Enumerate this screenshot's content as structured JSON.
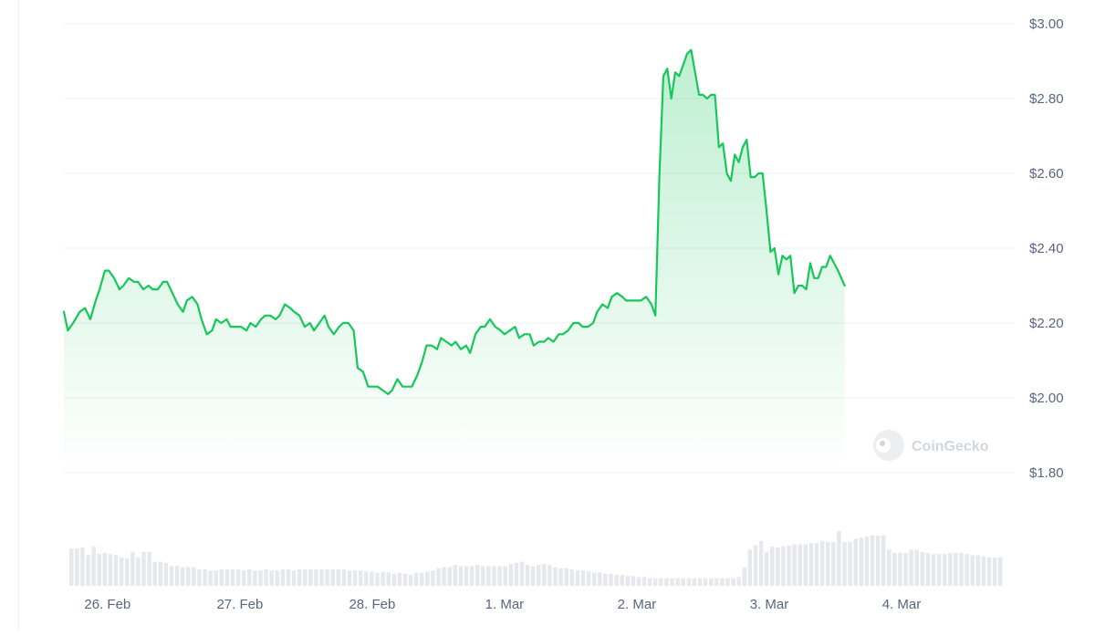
{
  "chart_data": {
    "type": "area",
    "title": "",
    "xlabel": "",
    "ylabel": "",
    "ylim": [
      1.8,
      3.0
    ],
    "y_ticks": [
      {
        "value": 3.0,
        "label": "$3.00"
      },
      {
        "value": 2.8,
        "label": "$2.80"
      },
      {
        "value": 2.6,
        "label": "$2.60"
      },
      {
        "value": 2.4,
        "label": "$2.40"
      },
      {
        "value": 2.2,
        "label": "$2.20"
      },
      {
        "value": 2.0,
        "label": "$2.00"
      },
      {
        "value": 1.8,
        "label": "$1.80"
      }
    ],
    "x_ticks": [
      {
        "day": 0.68,
        "label": "26. Feb"
      },
      {
        "day": 1.68,
        "label": "27. Feb"
      },
      {
        "day": 2.68,
        "label": "28. Feb"
      },
      {
        "day": 3.68,
        "label": "1. Mar"
      },
      {
        "day": 4.68,
        "label": "2. Mar"
      },
      {
        "day": 5.68,
        "label": "3. Mar"
      },
      {
        "day": 6.68,
        "label": "4. Mar"
      }
    ],
    "x_range_days": [
      0.35,
      7.48
    ],
    "grid": true,
    "line_color": "#16c75a",
    "fill_color": "#16c75a",
    "series": [
      {
        "points": [
          [
            0.35,
            2.23
          ],
          [
            0.38,
            2.18
          ],
          [
            0.42,
            2.2
          ],
          [
            0.47,
            2.23
          ],
          [
            0.51,
            2.24
          ],
          [
            0.55,
            2.21
          ],
          [
            0.59,
            2.26
          ],
          [
            0.62,
            2.29
          ],
          [
            0.66,
            2.34
          ],
          [
            0.69,
            2.34
          ],
          [
            0.73,
            2.32
          ],
          [
            0.77,
            2.29
          ],
          [
            0.8,
            2.3
          ],
          [
            0.84,
            2.32
          ],
          [
            0.88,
            2.31
          ],
          [
            0.91,
            2.31
          ],
          [
            0.95,
            2.29
          ],
          [
            0.99,
            2.3
          ],
          [
            1.02,
            2.29
          ],
          [
            1.06,
            2.29
          ],
          [
            1.1,
            2.31
          ],
          [
            1.13,
            2.31
          ],
          [
            1.17,
            2.28
          ],
          [
            1.21,
            2.25
          ],
          [
            1.25,
            2.23
          ],
          [
            1.28,
            2.26
          ],
          [
            1.32,
            2.27
          ],
          [
            1.36,
            2.25
          ],
          [
            1.39,
            2.21
          ],
          [
            1.43,
            2.17
          ],
          [
            1.47,
            2.18
          ],
          [
            1.5,
            2.21
          ],
          [
            1.54,
            2.2
          ],
          [
            1.58,
            2.21
          ],
          [
            1.61,
            2.19
          ],
          [
            1.65,
            2.19
          ],
          [
            1.69,
            2.19
          ],
          [
            1.73,
            2.18
          ],
          [
            1.76,
            2.2
          ],
          [
            1.8,
            2.19
          ],
          [
            1.84,
            2.21
          ],
          [
            1.87,
            2.22
          ],
          [
            1.91,
            2.22
          ],
          [
            1.95,
            2.21
          ],
          [
            1.98,
            2.22
          ],
          [
            2.02,
            2.25
          ],
          [
            2.06,
            2.24
          ],
          [
            2.09,
            2.23
          ],
          [
            2.13,
            2.22
          ],
          [
            2.17,
            2.19
          ],
          [
            2.21,
            2.2
          ],
          [
            2.24,
            2.18
          ],
          [
            2.28,
            2.2
          ],
          [
            2.32,
            2.22
          ],
          [
            2.35,
            2.19
          ],
          [
            2.39,
            2.17
          ],
          [
            2.43,
            2.19
          ],
          [
            2.46,
            2.2
          ],
          [
            2.5,
            2.2
          ],
          [
            2.54,
            2.18
          ],
          [
            2.57,
            2.08
          ],
          [
            2.61,
            2.07
          ],
          [
            2.65,
            2.03
          ],
          [
            2.69,
            2.03
          ],
          [
            2.72,
            2.03
          ],
          [
            2.76,
            2.02
          ],
          [
            2.8,
            2.01
          ],
          [
            2.83,
            2.02
          ],
          [
            2.87,
            2.05
          ],
          [
            2.91,
            2.03
          ],
          [
            2.95,
            2.03
          ],
          [
            2.98,
            2.03
          ],
          [
            3.02,
            2.06
          ],
          [
            3.06,
            2.1
          ],
          [
            3.09,
            2.14
          ],
          [
            3.13,
            2.14
          ],
          [
            3.17,
            2.13
          ],
          [
            3.2,
            2.16
          ],
          [
            3.24,
            2.15
          ],
          [
            3.28,
            2.14
          ],
          [
            3.31,
            2.15
          ],
          [
            3.35,
            2.13
          ],
          [
            3.39,
            2.14
          ],
          [
            3.42,
            2.12
          ],
          [
            3.46,
            2.17
          ],
          [
            3.5,
            2.19
          ],
          [
            3.53,
            2.19
          ],
          [
            3.57,
            2.21
          ],
          [
            3.61,
            2.19
          ],
          [
            3.65,
            2.18
          ],
          [
            3.68,
            2.17
          ],
          [
            3.72,
            2.18
          ],
          [
            3.76,
            2.19
          ],
          [
            3.79,
            2.16
          ],
          [
            3.83,
            2.17
          ],
          [
            3.87,
            2.17
          ],
          [
            3.9,
            2.14
          ],
          [
            3.94,
            2.15
          ],
          [
            3.98,
            2.15
          ],
          [
            4.01,
            2.16
          ],
          [
            4.05,
            2.15
          ],
          [
            4.09,
            2.17
          ],
          [
            4.12,
            2.17
          ],
          [
            4.16,
            2.18
          ],
          [
            4.2,
            2.2
          ],
          [
            4.24,
            2.2
          ],
          [
            4.27,
            2.19
          ],
          [
            4.31,
            2.19
          ],
          [
            4.35,
            2.2
          ],
          [
            4.38,
            2.23
          ],
          [
            4.42,
            2.25
          ],
          [
            4.46,
            2.24
          ],
          [
            4.49,
            2.27
          ],
          [
            4.53,
            2.28
          ],
          [
            4.57,
            2.27
          ],
          [
            4.6,
            2.26
          ],
          [
            4.64,
            2.26
          ],
          [
            4.68,
            2.26
          ],
          [
            4.71,
            2.26
          ],
          [
            4.75,
            2.27
          ],
          [
            4.79,
            2.25
          ],
          [
            4.82,
            2.22
          ],
          [
            4.85,
            2.59
          ],
          [
            4.88,
            2.86
          ],
          [
            4.91,
            2.88
          ],
          [
            4.94,
            2.8
          ],
          [
            4.97,
            2.87
          ],
          [
            5.0,
            2.86
          ],
          [
            5.03,
            2.89
          ],
          [
            5.06,
            2.92
          ],
          [
            5.09,
            2.93
          ],
          [
            5.12,
            2.87
          ],
          [
            5.15,
            2.81
          ],
          [
            5.18,
            2.81
          ],
          [
            5.21,
            2.8
          ],
          [
            5.24,
            2.81
          ],
          [
            5.27,
            2.81
          ],
          [
            5.3,
            2.67
          ],
          [
            5.33,
            2.68
          ],
          [
            5.36,
            2.6
          ],
          [
            5.39,
            2.58
          ],
          [
            5.42,
            2.65
          ],
          [
            5.45,
            2.63
          ],
          [
            5.48,
            2.67
          ],
          [
            5.51,
            2.69
          ],
          [
            5.54,
            2.59
          ],
          [
            5.57,
            2.59
          ],
          [
            5.6,
            2.6
          ],
          [
            5.63,
            2.6
          ],
          [
            5.66,
            2.5
          ],
          [
            5.69,
            2.39
          ],
          [
            5.72,
            2.4
          ],
          [
            5.75,
            2.33
          ],
          [
            5.78,
            2.38
          ],
          [
            5.81,
            2.37
          ],
          [
            5.84,
            2.38
          ],
          [
            5.87,
            2.28
          ],
          [
            5.9,
            2.3
          ],
          [
            5.93,
            2.3
          ],
          [
            5.96,
            2.29
          ],
          [
            5.99,
            2.36
          ],
          [
            6.02,
            2.32
          ],
          [
            6.05,
            2.32
          ],
          [
            6.08,
            2.35
          ],
          [
            6.11,
            2.35
          ],
          [
            6.14,
            2.38
          ],
          [
            6.17,
            2.36
          ],
          [
            6.2,
            2.34
          ],
          [
            6.25,
            2.3
          ]
        ]
      }
    ],
    "volume": {
      "bar_color": "#e6e8ec",
      "values": [
        0.34,
        0.34,
        0.35,
        0.28,
        0.36,
        0.29,
        0.3,
        0.29,
        0.28,
        0.26,
        0.25,
        0.31,
        0.26,
        0.31,
        0.31,
        0.22,
        0.22,
        0.21,
        0.18,
        0.18,
        0.17,
        0.17,
        0.17,
        0.15,
        0.15,
        0.14,
        0.14,
        0.15,
        0.15,
        0.15,
        0.15,
        0.14,
        0.15,
        0.14,
        0.14,
        0.15,
        0.14,
        0.14,
        0.15,
        0.15,
        0.14,
        0.15,
        0.15,
        0.15,
        0.15,
        0.15,
        0.15,
        0.15,
        0.15,
        0.15,
        0.14,
        0.14,
        0.14,
        0.13,
        0.13,
        0.12,
        0.13,
        0.12,
        0.11,
        0.12,
        0.11,
        0.1,
        0.12,
        0.12,
        0.13,
        0.14,
        0.16,
        0.17,
        0.17,
        0.19,
        0.18,
        0.18,
        0.18,
        0.19,
        0.18,
        0.18,
        0.18,
        0.18,
        0.18,
        0.2,
        0.21,
        0.22,
        0.19,
        0.18,
        0.19,
        0.2,
        0.19,
        0.17,
        0.16,
        0.16,
        0.15,
        0.14,
        0.14,
        0.13,
        0.12,
        0.12,
        0.11,
        0.11,
        0.1,
        0.1,
        0.09,
        0.09,
        0.08,
        0.08,
        0.07,
        0.07,
        0.07,
        0.07,
        0.07,
        0.07,
        0.07,
        0.07,
        0.07,
        0.07,
        0.07,
        0.07,
        0.07,
        0.07,
        0.07,
        0.07,
        0.08,
        0.17,
        0.33,
        0.37,
        0.41,
        0.31,
        0.36,
        0.35,
        0.36,
        0.37,
        0.38,
        0.38,
        0.38,
        0.39,
        0.39,
        0.41,
        0.4,
        0.4,
        0.5,
        0.4,
        0.4,
        0.43,
        0.44,
        0.45,
        0.46,
        0.46,
        0.46,
        0.33,
        0.3,
        0.3,
        0.3,
        0.33,
        0.33,
        0.31,
        0.3,
        0.29,
        0.29,
        0.29,
        0.3,
        0.3,
        0.3,
        0.29,
        0.28,
        0.28,
        0.27,
        0.26,
        0.26,
        0.26
      ]
    }
  },
  "watermark": {
    "text": "CoinGecko",
    "icon": "gecko-logo-icon"
  }
}
